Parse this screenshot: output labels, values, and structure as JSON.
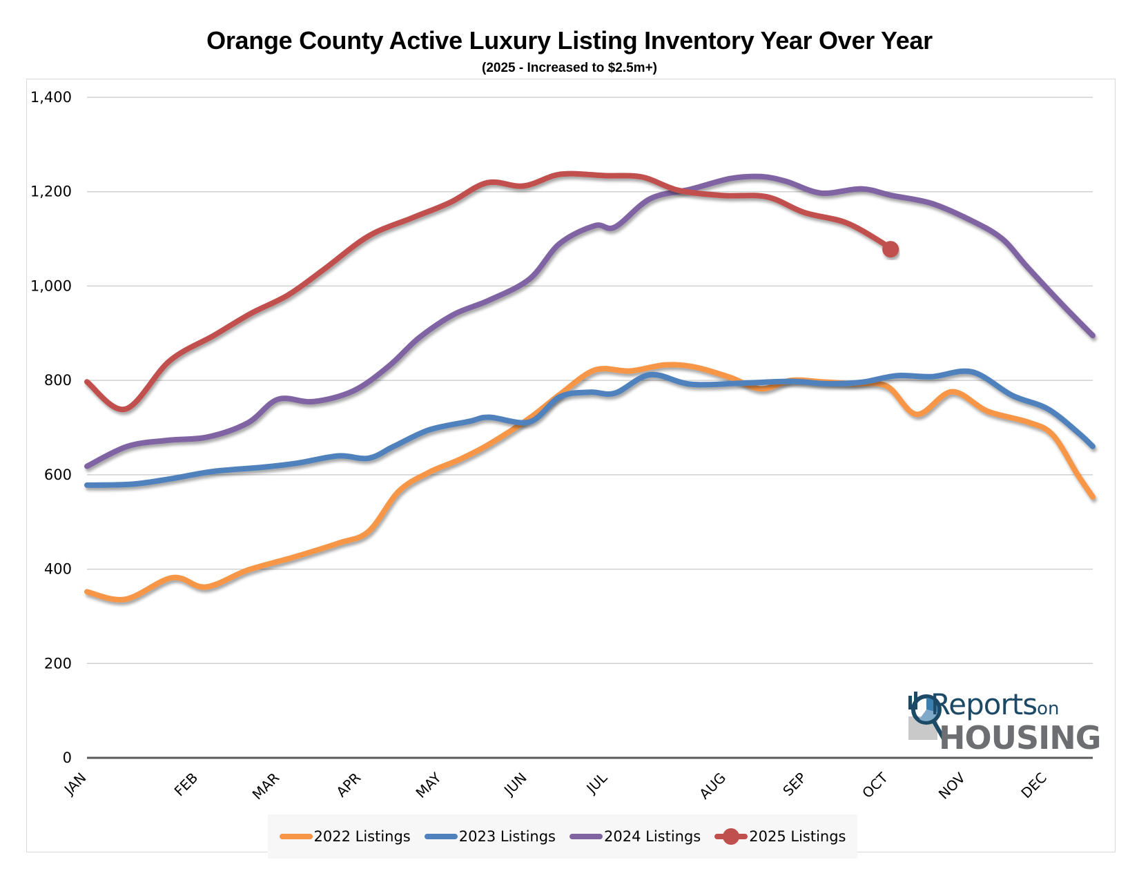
{
  "header": {
    "title": "Orange County Active Luxury Listing Inventory Year Over Year",
    "subtitle": "(2025 - Increased to $2.5m+)"
  },
  "logo": {
    "line1": "Reports",
    "line1_suffix": "on",
    "line2": "HOUSING"
  },
  "chart_data": {
    "type": "line",
    "title": "Orange County Active Luxury Listing Inventory Year Over Year",
    "subtitle": "(2025 - Increased to $2.5m+)",
    "xlabel": "",
    "ylabel": "",
    "ylim": [
      0,
      1400
    ],
    "yticks": [
      0,
      200,
      400,
      600,
      800,
      1000,
      1200,
      1400
    ],
    "ytick_labels": [
      "0",
      "200",
      "400",
      "600",
      "800",
      "1,000",
      "1,200",
      "1,400"
    ],
    "grid": true,
    "legend_position": "bottom",
    "x_domain": [
      0,
      1
    ],
    "x_note": "x is the fraction of the calendar year (0 = start of Jan, 1 = end of Dec)",
    "categories": [
      "JAN",
      "FEB",
      "MAR",
      "APR",
      "MAY",
      "JUN",
      "JUL",
      "AUG",
      "SEP",
      "OCT",
      "NOV",
      "DEC"
    ],
    "category_x": [
      0.0,
      0.111,
      0.192,
      0.273,
      0.353,
      0.438,
      0.518,
      0.636,
      0.716,
      0.797,
      0.874,
      0.955
    ],
    "series": [
      {
        "name": "2022 Listings",
        "color": "#F79646",
        "marker_at_end": false,
        "x": [
          0.0,
          0.038,
          0.085,
          0.118,
          0.16,
          0.205,
          0.25,
          0.28,
          0.31,
          0.34,
          0.37,
          0.4,
          0.44,
          0.47,
          0.505,
          0.54,
          0.575,
          0.605,
          0.64,
          0.67,
          0.7,
          0.73,
          0.76,
          0.795,
          0.825,
          0.86,
          0.895,
          0.935,
          0.96,
          0.985,
          1.0
        ],
        "values": [
          352,
          336,
          382,
          362,
          398,
          425,
          455,
          480,
          565,
          605,
          632,
          665,
          720,
          770,
          822,
          820,
          833,
          828,
          806,
          782,
          800,
          797,
          793,
          788,
          728,
          776,
          735,
          712,
          685,
          600,
          553
        ]
      },
      {
        "name": "2023 Listings",
        "color": "#4F81BD",
        "marker_at_end": false,
        "x": [
          0.0,
          0.045,
          0.085,
          0.125,
          0.175,
          0.21,
          0.25,
          0.28,
          0.305,
          0.34,
          0.38,
          0.4,
          0.44,
          0.47,
          0.5,
          0.525,
          0.56,
          0.6,
          0.65,
          0.7,
          0.735,
          0.77,
          0.805,
          0.84,
          0.88,
          0.92,
          0.955,
          0.985,
          1.0
        ],
        "values": [
          578,
          580,
          592,
          607,
          616,
          625,
          640,
          635,
          660,
          695,
          713,
          722,
          712,
          765,
          775,
          773,
          812,
          792,
          794,
          798,
          793,
          796,
          810,
          808,
          818,
          768,
          740,
          690,
          660
        ]
      },
      {
        "name": "2024 Listings",
        "color": "#8064A2",
        "marker_at_end": false,
        "x": [
          0.0,
          0.04,
          0.08,
          0.12,
          0.16,
          0.19,
          0.225,
          0.265,
          0.3,
          0.33,
          0.365,
          0.4,
          0.44,
          0.47,
          0.505,
          0.525,
          0.56,
          0.6,
          0.64,
          0.67,
          0.695,
          0.73,
          0.77,
          0.8,
          0.84,
          0.88,
          0.91,
          0.935,
          0.97,
          1.0
        ],
        "values": [
          618,
          660,
          673,
          680,
          710,
          760,
          755,
          778,
          830,
          890,
          940,
          970,
          1015,
          1090,
          1128,
          1125,
          1185,
          1205,
          1228,
          1232,
          1222,
          1197,
          1206,
          1192,
          1175,
          1138,
          1100,
          1040,
          960,
          895
        ]
      },
      {
        "name": "2025 Listings",
        "color": "#C0504D",
        "marker_at_end": true,
        "x": [
          0.0,
          0.038,
          0.082,
          0.126,
          0.163,
          0.2,
          0.236,
          0.28,
          0.324,
          0.361,
          0.398,
          0.434,
          0.471,
          0.515,
          0.552,
          0.588,
          0.632,
          0.676,
          0.713,
          0.755,
          0.792,
          0.799
        ],
        "values": [
          797,
          739,
          841,
          895,
          942,
          981,
          1036,
          1106,
          1145,
          1177,
          1219,
          1212,
          1237,
          1234,
          1231,
          1203,
          1192,
          1189,
          1156,
          1134,
          1090,
          1078
        ]
      }
    ]
  }
}
